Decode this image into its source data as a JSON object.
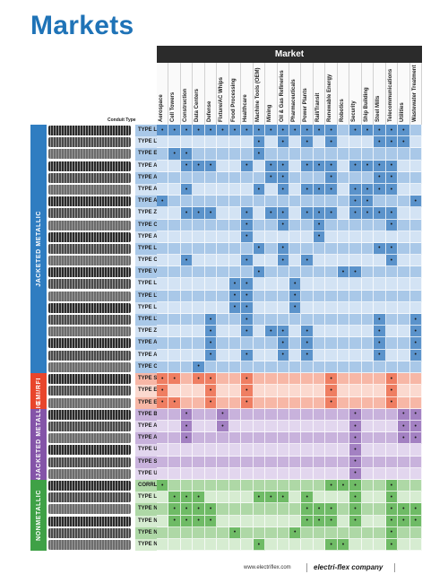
{
  "title": "Markets",
  "market_header": "Market",
  "conduit_type_label": "Conduit Type",
  "markets": [
    "Aerospace",
    "Cell Towers",
    "Construction",
    "Data Centers",
    "Defense",
    "Fixture/AC Whips",
    "Food Processing",
    "Healthcare",
    "Machine Tools (OEM)",
    "Mining",
    "Oil & Gas Refineries",
    "Pharmaceuticals",
    "Power Plants",
    "Rail/Transit",
    "Renewable Energy",
    "Robotics",
    "Security",
    "Ship Building",
    "Steel Mills",
    "Telecommunications",
    "Utilities",
    "Wastewater Treatment"
  ],
  "sections": [
    {
      "label": "JACKETED METALLIC",
      "color": "#2f7dc1",
      "row_colors": [
        "#a9c8e8",
        "#d3e3f4"
      ],
      "mark_color": "#5b93cb",
      "rows": [
        {
          "name": "TYPE LA",
          "marks": [
            1,
            1,
            1,
            1,
            1,
            1,
            1,
            1,
            1,
            1,
            1,
            1,
            1,
            1,
            1,
            0,
            1,
            1,
            1,
            1,
            1,
            0
          ]
        },
        {
          "name": "TYPE LT",
          "marks": [
            0,
            0,
            0,
            0,
            0,
            0,
            0,
            0,
            1,
            0,
            1,
            0,
            1,
            0,
            1,
            0,
            0,
            0,
            1,
            1,
            1,
            0
          ]
        },
        {
          "name": "TYPE EF",
          "marks": [
            0,
            1,
            1,
            0,
            0,
            0,
            0,
            0,
            1,
            0,
            0,
            0,
            0,
            0,
            0,
            0,
            0,
            0,
            0,
            0,
            0,
            0
          ]
        },
        {
          "name": "TYPE ATLA",
          "marks": [
            0,
            0,
            1,
            1,
            1,
            0,
            0,
            1,
            0,
            1,
            1,
            0,
            1,
            1,
            1,
            0,
            1,
            1,
            1,
            1,
            0,
            0
          ]
        },
        {
          "name": "TYPE AT",
          "marks": [
            0,
            0,
            0,
            0,
            0,
            0,
            0,
            0,
            0,
            1,
            1,
            0,
            0,
            0,
            1,
            0,
            0,
            0,
            1,
            1,
            0,
            0
          ]
        },
        {
          "name": "TYPE ATX",
          "marks": [
            0,
            0,
            1,
            0,
            0,
            0,
            0,
            0,
            1,
            0,
            1,
            0,
            1,
            1,
            1,
            0,
            1,
            1,
            1,
            1,
            0,
            0
          ]
        },
        {
          "name": "TYPE ALT",
          "marks": [
            1,
            0,
            0,
            0,
            0,
            0,
            0,
            0,
            0,
            0,
            0,
            0,
            0,
            0,
            0,
            0,
            1,
            1,
            0,
            0,
            0,
            1
          ]
        },
        {
          "name": "TYPE ZHLA",
          "marks": [
            0,
            0,
            1,
            1,
            1,
            0,
            0,
            1,
            0,
            1,
            1,
            0,
            1,
            1,
            1,
            0,
            1,
            1,
            1,
            1,
            0,
            0
          ]
        },
        {
          "name": "TYPE CEA",
          "marks": [
            0,
            0,
            0,
            0,
            0,
            0,
            0,
            1,
            0,
            0,
            1,
            0,
            0,
            1,
            0,
            0,
            0,
            0,
            0,
            1,
            0,
            0
          ]
        },
        {
          "name": "TYPE ACEA",
          "marks": [
            0,
            0,
            0,
            0,
            0,
            0,
            0,
            1,
            0,
            0,
            0,
            0,
            0,
            1,
            0,
            0,
            0,
            0,
            0,
            0,
            0,
            0
          ]
        },
        {
          "name": "TYPE LOR",
          "marks": [
            0,
            0,
            0,
            0,
            0,
            0,
            0,
            0,
            1,
            0,
            1,
            0,
            0,
            0,
            0,
            0,
            0,
            0,
            1,
            1,
            0,
            0
          ]
        },
        {
          "name": "TYPE CSA",
          "marks": [
            0,
            0,
            1,
            0,
            0,
            0,
            0,
            1,
            0,
            0,
            1,
            0,
            1,
            0,
            0,
            0,
            0,
            0,
            0,
            1,
            0,
            0
          ]
        },
        {
          "name": "TYPE VJC",
          "marks": [
            0,
            0,
            0,
            0,
            0,
            0,
            0,
            0,
            1,
            0,
            0,
            0,
            0,
            0,
            0,
            1,
            1,
            0,
            0,
            0,
            0,
            0
          ]
        },
        {
          "name": "TYPE LAFG",
          "marks": [
            0,
            0,
            0,
            0,
            0,
            0,
            1,
            1,
            0,
            0,
            0,
            1,
            0,
            0,
            0,
            0,
            0,
            0,
            0,
            0,
            0,
            0
          ]
        },
        {
          "name": "TYPE LTFG",
          "marks": [
            0,
            0,
            0,
            0,
            0,
            0,
            1,
            1,
            0,
            0,
            0,
            1,
            0,
            0,
            0,
            0,
            0,
            0,
            0,
            0,
            0,
            0
          ]
        },
        {
          "name": "TYPE LSSFG",
          "marks": [
            0,
            0,
            0,
            0,
            0,
            0,
            1,
            1,
            0,
            0,
            0,
            1,
            0,
            0,
            0,
            0,
            0,
            0,
            0,
            0,
            0,
            0
          ]
        },
        {
          "name": "TYPE LTSS",
          "marks": [
            0,
            0,
            0,
            0,
            1,
            0,
            0,
            1,
            0,
            0,
            0,
            0,
            0,
            0,
            0,
            0,
            0,
            0,
            1,
            0,
            0,
            1
          ]
        },
        {
          "name": "TYPE ZHSS",
          "marks": [
            0,
            0,
            0,
            0,
            1,
            0,
            0,
            1,
            0,
            1,
            1,
            0,
            1,
            0,
            0,
            0,
            0,
            0,
            1,
            0,
            0,
            1
          ]
        },
        {
          "name": "TYPE ATXSS",
          "marks": [
            0,
            0,
            0,
            0,
            1,
            0,
            0,
            0,
            0,
            0,
            1,
            0,
            1,
            0,
            0,
            0,
            0,
            0,
            1,
            0,
            0,
            1
          ]
        },
        {
          "name": "TYPE ATSS",
          "marks": [
            0,
            0,
            0,
            0,
            1,
            0,
            0,
            1,
            0,
            0,
            1,
            0,
            1,
            0,
            0,
            0,
            0,
            0,
            1,
            0,
            0,
            1
          ]
        },
        {
          "name": "TYPE CBLA",
          "marks": [
            0,
            0,
            0,
            1,
            0,
            0,
            0,
            0,
            0,
            0,
            0,
            0,
            0,
            0,
            0,
            0,
            0,
            0,
            0,
            0,
            0,
            0
          ]
        }
      ]
    },
    {
      "label": "EMI/RFI",
      "color": "#e8452b",
      "row_colors": [
        "#f7b7a6",
        "#fbd9cf"
      ],
      "mark_color": "#ef7e62",
      "rows": [
        {
          "name": "TYPE SLA",
          "marks": [
            1,
            1,
            0,
            1,
            1,
            0,
            0,
            1,
            0,
            0,
            0,
            0,
            0,
            0,
            1,
            0,
            0,
            0,
            0,
            1,
            0,
            0
          ]
        },
        {
          "name": "TYPE EMS",
          "marks": [
            1,
            0,
            0,
            0,
            1,
            0,
            0,
            1,
            0,
            0,
            0,
            0,
            0,
            0,
            1,
            0,
            0,
            0,
            0,
            1,
            0,
            0
          ]
        },
        {
          "name": "TYPE EMCS",
          "marks": [
            1,
            1,
            0,
            0,
            1,
            0,
            0,
            1,
            0,
            0,
            0,
            0,
            0,
            0,
            1,
            0,
            0,
            0,
            0,
            1,
            0,
            0
          ]
        }
      ]
    },
    {
      "label": "UNJACKETED METALLIC",
      "color": "#8454a8",
      "row_colors": [
        "#c8b2dc",
        "#e2d6ee"
      ],
      "mark_color": "#a381c2",
      "rows": [
        {
          "name": "TYPE BR",
          "marks": [
            0,
            0,
            1,
            0,
            0,
            1,
            0,
            0,
            0,
            0,
            0,
            0,
            0,
            0,
            0,
            0,
            1,
            0,
            0,
            0,
            1,
            1
          ]
        },
        {
          "name": "TYPE ABR",
          "marks": [
            0,
            0,
            1,
            0,
            0,
            1,
            0,
            0,
            0,
            0,
            0,
            0,
            0,
            0,
            0,
            0,
            1,
            0,
            0,
            0,
            1,
            1
          ]
        },
        {
          "name": "TYPE ABRH",
          "marks": [
            0,
            0,
            1,
            0,
            0,
            0,
            0,
            0,
            0,
            0,
            0,
            0,
            0,
            0,
            0,
            0,
            1,
            0,
            0,
            0,
            1,
            1
          ]
        },
        {
          "name": "TYPE USL",
          "marks": [
            0,
            0,
            0,
            0,
            0,
            0,
            0,
            0,
            0,
            0,
            0,
            0,
            0,
            0,
            0,
            0,
            1,
            0,
            0,
            0,
            0,
            0
          ]
        },
        {
          "name": "TYPE SL",
          "marks": [
            0,
            0,
            0,
            0,
            0,
            0,
            0,
            0,
            0,
            0,
            0,
            0,
            0,
            0,
            0,
            0,
            1,
            0,
            0,
            0,
            0,
            0
          ]
        },
        {
          "name": "TYPE UG",
          "marks": [
            0,
            0,
            0,
            0,
            0,
            0,
            0,
            0,
            0,
            0,
            0,
            0,
            0,
            0,
            0,
            0,
            1,
            0,
            0,
            0,
            0,
            0
          ]
        }
      ]
    },
    {
      "label": "NONMETALLIC",
      "color": "#3fa146",
      "row_colors": [
        "#aed8a6",
        "#d6ecd1"
      ],
      "mark_color": "#6fbb66",
      "rows": [
        {
          "name": "CORRLOK®",
          "marks": [
            1,
            0,
            0,
            0,
            0,
            0,
            0,
            0,
            0,
            0,
            0,
            0,
            0,
            0,
            1,
            1,
            1,
            0,
            0,
            1,
            0,
            0
          ]
        },
        {
          "name": "TYPE LNM-P",
          "marks": [
            0,
            1,
            1,
            1,
            0,
            0,
            0,
            0,
            1,
            1,
            1,
            0,
            1,
            0,
            0,
            0,
            1,
            0,
            0,
            1,
            0,
            0
          ]
        },
        {
          "name": "TYPE NM",
          "marks": [
            0,
            1,
            1,
            1,
            1,
            0,
            0,
            0,
            0,
            0,
            0,
            0,
            1,
            1,
            1,
            0,
            1,
            0,
            0,
            1,
            1,
            1
          ]
        },
        {
          "name": "TYPE NMHT",
          "marks": [
            0,
            1,
            1,
            1,
            1,
            0,
            0,
            0,
            0,
            0,
            0,
            0,
            1,
            1,
            1,
            0,
            1,
            0,
            0,
            1,
            1,
            1
          ]
        },
        {
          "name": "TYPE NMFG",
          "marks": [
            0,
            0,
            0,
            0,
            0,
            0,
            1,
            0,
            0,
            0,
            0,
            1,
            0,
            0,
            0,
            0,
            0,
            0,
            0,
            1,
            0,
            0
          ]
        },
        {
          "name": "TYPE NM2",
          "marks": [
            0,
            0,
            0,
            0,
            0,
            0,
            0,
            0,
            1,
            0,
            0,
            0,
            0,
            0,
            1,
            1,
            0,
            0,
            0,
            1,
            0,
            0
          ]
        }
      ]
    }
  ],
  "footer": {
    "url": "www.electriflex.com",
    "brand": "electri-flex company"
  }
}
